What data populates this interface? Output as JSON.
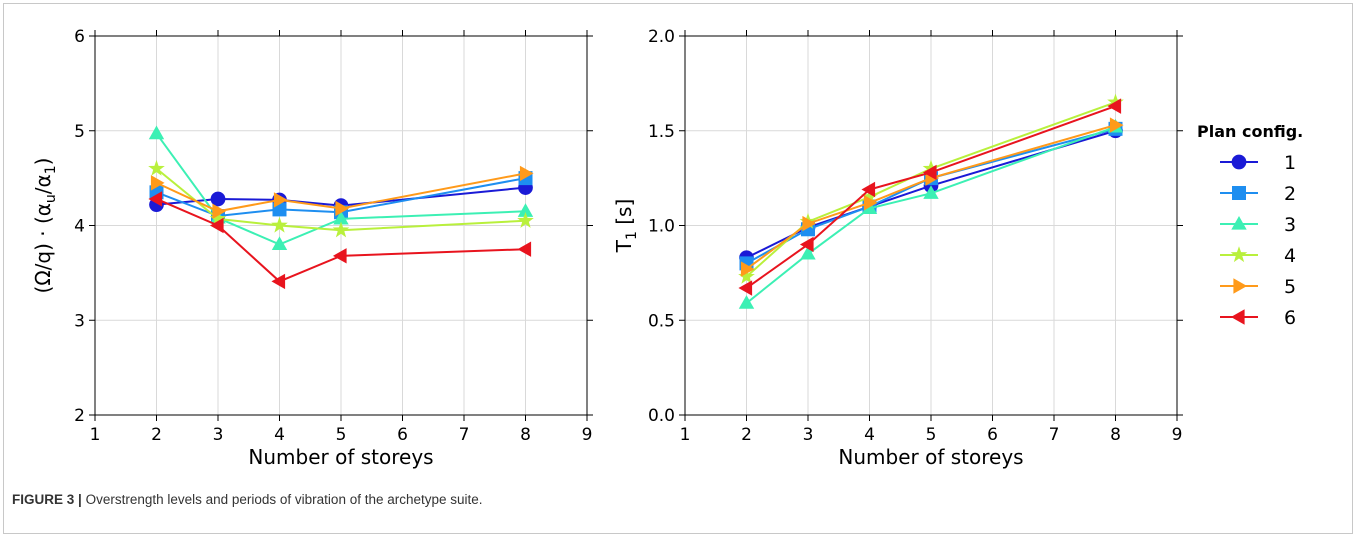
{
  "caption": {
    "label": "FIGURE 3 |",
    "text": "Overstrength levels and periods of vibration of the archetype suite."
  },
  "legend": {
    "title": "Plan config.",
    "entries": [
      "1",
      "2",
      "3",
      "4",
      "5",
      "6"
    ]
  },
  "series_styles": [
    {
      "name": "1",
      "color": "#1a1ad6",
      "marker": "circle"
    },
    {
      "name": "2",
      "color": "#1e8ef0",
      "marker": "square"
    },
    {
      "name": "3",
      "color": "#3cf0b4",
      "marker": "triangle-up"
    },
    {
      "name": "4",
      "color": "#b9f03c",
      "marker": "star"
    },
    {
      "name": "5",
      "color": "#ff9a1a",
      "marker": "triangle-right"
    },
    {
      "name": "6",
      "color": "#e8141e",
      "marker": "triangle-left"
    }
  ],
  "chart_data": [
    {
      "type": "line",
      "xlabel": "Number of storeys",
      "ylabel": "(Ω/q) · (αu/α1)",
      "ylabel_parts": {
        "prefix": "(Ω/q) · (α",
        "sub1": "u",
        "mid": "/α",
        "sub2": "1",
        "suffix": ")"
      },
      "xlim": [
        1,
        9
      ],
      "ylim": [
        2,
        6
      ],
      "xticks": [
        1,
        2,
        3,
        4,
        5,
        6,
        7,
        8,
        9
      ],
      "yticks": [
        2,
        3,
        4,
        5,
        6
      ],
      "ytick_labels": [
        "2",
        "3",
        "4",
        "5",
        "6"
      ],
      "grid": true,
      "x": [
        2,
        3,
        4,
        5,
        8
      ],
      "series": [
        {
          "name": "1",
          "values": [
            4.22,
            4.28,
            4.27,
            4.21,
            4.4
          ]
        },
        {
          "name": "2",
          "values": [
            4.35,
            4.1,
            4.17,
            4.14,
            4.5
          ]
        },
        {
          "name": "3",
          "values": [
            4.97,
            4.08,
            3.8,
            4.07,
            4.15
          ]
        },
        {
          "name": "4",
          "values": [
            4.6,
            4.07,
            4.0,
            3.95,
            4.05
          ]
        },
        {
          "name": "5",
          "values": [
            4.45,
            4.15,
            4.27,
            4.18,
            4.55
          ]
        },
        {
          "name": "6",
          "values": [
            4.28,
            4.0,
            3.41,
            3.68,
            3.75
          ]
        }
      ]
    },
    {
      "type": "line",
      "xlabel": "Number of storeys",
      "ylabel": "T1 [s]",
      "ylabel_parts": {
        "prefix": "T",
        "sub1": "1",
        "mid": " [s]",
        "sub2": "",
        "suffix": ""
      },
      "xlim": [
        1,
        9
      ],
      "ylim": [
        0,
        2
      ],
      "xticks": [
        1,
        2,
        3,
        4,
        5,
        6,
        7,
        8,
        9
      ],
      "yticks": [
        0,
        0.5,
        1,
        1.5,
        2
      ],
      "ytick_labels": [
        "0.0",
        "0.5",
        "1.0",
        "1.5",
        "2.0"
      ],
      "grid": true,
      "legend": "right",
      "x": [
        2,
        3,
        4,
        5,
        8
      ],
      "series": [
        {
          "name": "1",
          "values": [
            0.83,
            0.99,
            1.1,
            1.21,
            1.5
          ]
        },
        {
          "name": "2",
          "values": [
            0.8,
            0.98,
            1.1,
            1.25,
            1.51
          ]
        },
        {
          "name": "3",
          "values": [
            0.59,
            0.85,
            1.09,
            1.17,
            1.52
          ]
        },
        {
          "name": "4",
          "values": [
            0.73,
            1.02,
            1.15,
            1.3,
            1.65
          ]
        },
        {
          "name": "5",
          "values": [
            0.77,
            1.01,
            1.12,
            1.25,
            1.53
          ]
        },
        {
          "name": "6",
          "values": [
            0.67,
            0.9,
            1.19,
            1.28,
            1.63
          ]
        }
      ]
    }
  ]
}
